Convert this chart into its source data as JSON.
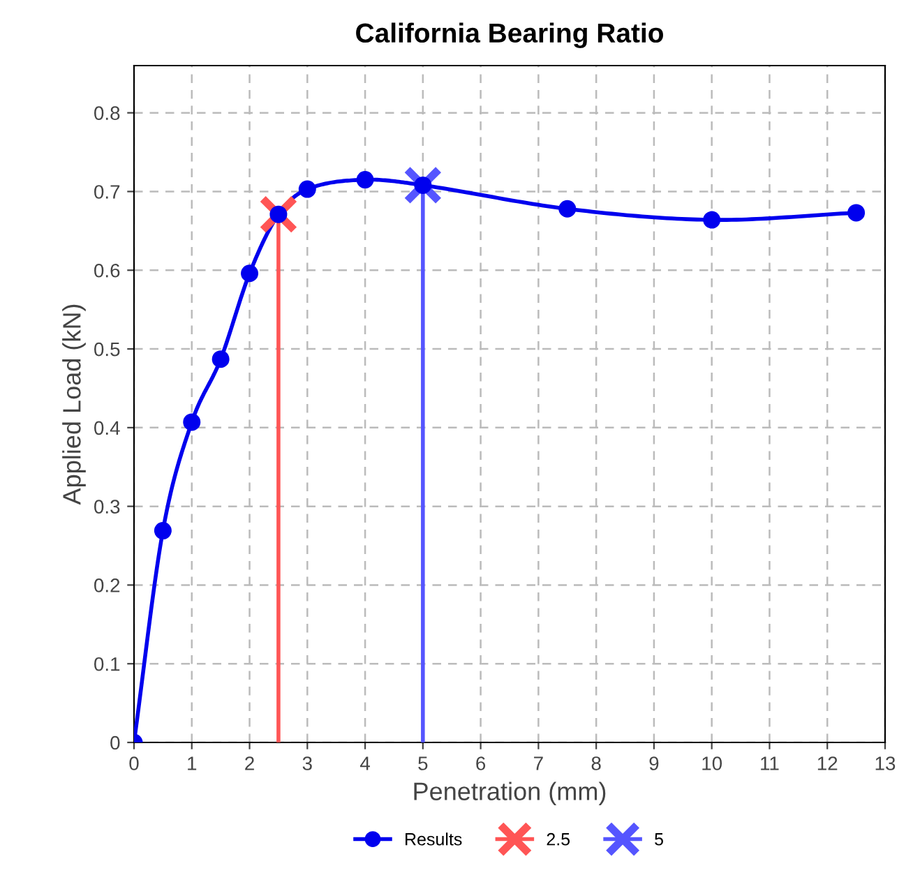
{
  "chart_data": {
    "type": "line",
    "title": "California Bearing Ratio",
    "xlabel": "Penetration (mm)",
    "ylabel": "Applied Load (kN)",
    "xlim": [
      0,
      13
    ],
    "xticks": [
      0,
      1,
      2,
      3,
      4,
      5,
      6,
      7,
      8,
      9,
      10,
      11,
      12,
      13
    ],
    "ylim": [
      0,
      0.86
    ],
    "yticks": [
      0,
      0.1,
      0.2,
      0.3,
      0.4,
      0.5,
      0.6,
      0.7,
      0.8
    ],
    "grid": true,
    "legend": "bottom",
    "line_style": "solid",
    "series": [
      {
        "name": "Results",
        "color": "#0000ee",
        "marker": "circle",
        "x": [
          0,
          0.5,
          1,
          1.5,
          2,
          2.5,
          3,
          4,
          5,
          7.5,
          10,
          12.5
        ],
        "values": [
          0,
          0.269,
          0.407,
          0.487,
          0.596,
          0.671,
          0.703,
          0.715,
          0.708,
          0.678,
          0.664,
          0.673
        ]
      },
      {
        "name": "2.5",
        "color": "#ff5555",
        "marker": "cross",
        "x": [
          2.5,
          2.5
        ],
        "values": [
          0,
          0.671
        ]
      },
      {
        "name": "5",
        "color": "#5555ff",
        "marker": "cross",
        "x": [
          5,
          5
        ],
        "values": [
          0,
          0.708
        ]
      }
    ]
  }
}
